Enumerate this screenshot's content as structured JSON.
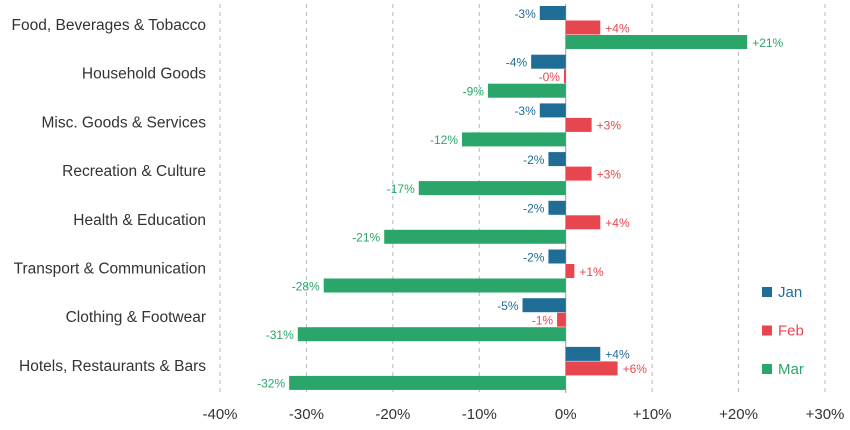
{
  "chart_data": {
    "type": "bar",
    "orientation": "horizontal",
    "categories": [
      "Food, Beverages & Tobacco",
      "Household Goods",
      "Misc. Goods & Services",
      "Recreation & Culture",
      "Health & Education",
      "Transport & Communication",
      "Clothing & Footwear",
      "Hotels, Restaurants & Bars"
    ],
    "series": [
      {
        "name": "Jan",
        "color": "#1f6d97",
        "values": [
          -3,
          -4,
          -3,
          -2,
          -2,
          -2,
          -5,
          4
        ],
        "labels": [
          "-3%",
          "-4%",
          "-3%",
          "-2%",
          "-2%",
          "-2%",
          "-5%",
          "+4%"
        ]
      },
      {
        "name": "Feb",
        "color": "#e8464f",
        "values": [
          4,
          -0.2,
          3,
          3,
          4,
          1,
          -1,
          6
        ],
        "labels": [
          "+4%",
          "-0%",
          "+3%",
          "+3%",
          "+4%",
          "+1%",
          "-1%",
          "+6%"
        ]
      },
      {
        "name": "Mar",
        "color": "#2aa66a",
        "values": [
          21,
          -9,
          -12,
          -17,
          -21,
          -28,
          -31,
          -32
        ],
        "labels": [
          "+21%",
          "-9%",
          "-12%",
          "-17%",
          "-21%",
          "-28%",
          "-31%",
          "-32%"
        ]
      }
    ],
    "xlim": [
      -40,
      30
    ],
    "xticks": [
      -40,
      -30,
      -20,
      -10,
      0,
      10,
      20,
      30
    ],
    "xtick_labels": [
      "-40%",
      "-30%",
      "-20%",
      "-10%",
      "0%",
      "+10%",
      "+20%",
      "+30%"
    ],
    "grid": "vertical dashed",
    "legend_position": "bottom-right",
    "title": "",
    "xlabel": "",
    "ylabel": ""
  }
}
